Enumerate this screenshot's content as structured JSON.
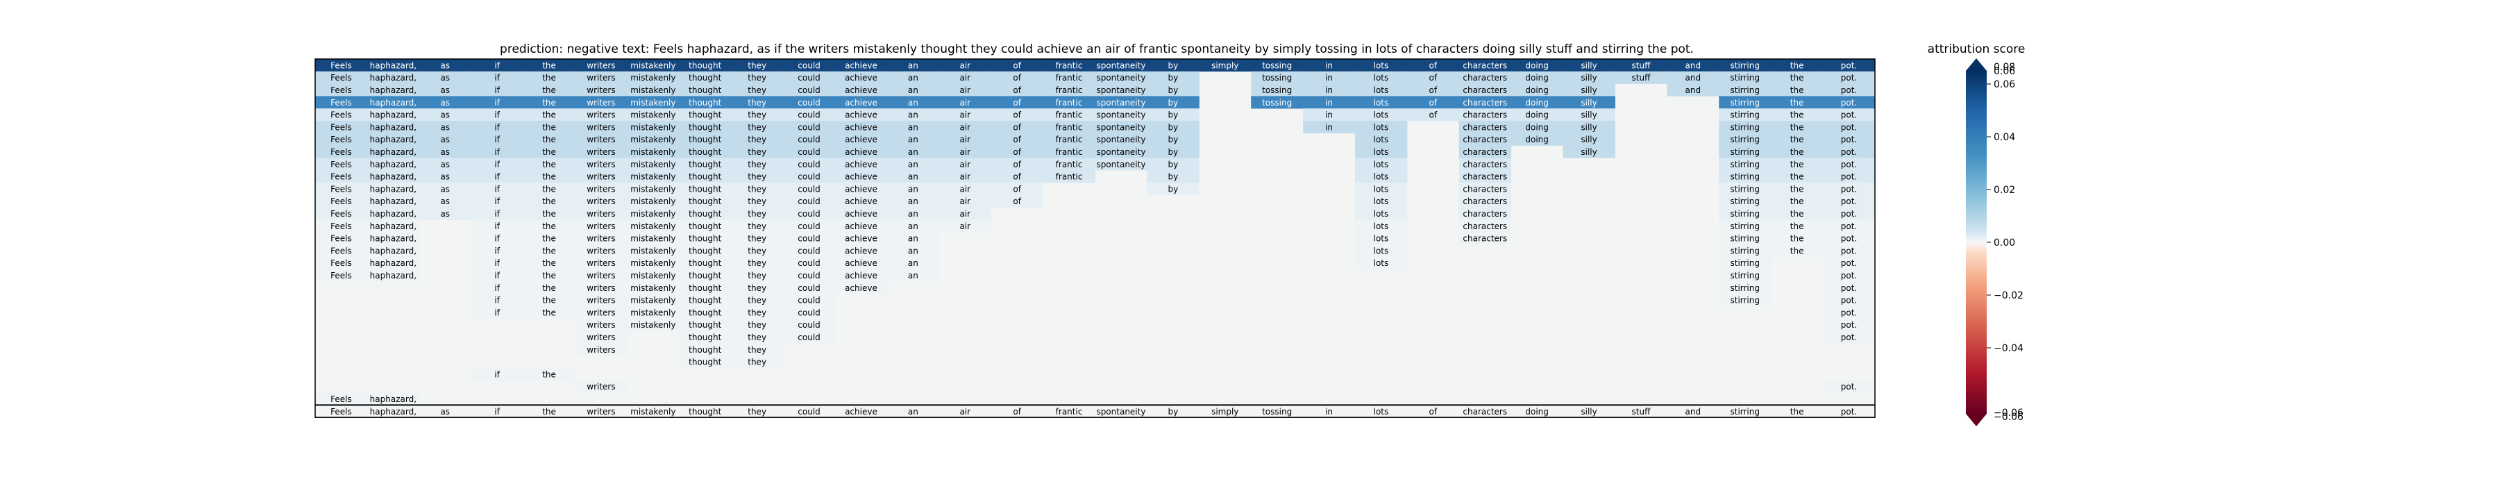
{
  "chart_data": {
    "type": "heatmap",
    "title": "prediction:  negative     text:  Feels haphazard, as if the writers mistakenly thought they could achieve an air of frantic spontaneity by simply tossing in lots of characters doing silly stuff and stirring the pot.",
    "tokens": [
      "Feels",
      "haphazard,",
      "as",
      "if",
      "the",
      "writers",
      "mistakenly",
      "thought",
      "they",
      "could",
      "achieve",
      "an",
      "air",
      "of",
      "frantic",
      "spontaneity",
      "by",
      "simply",
      "tossing",
      "in",
      "lots",
      "of",
      "characters",
      "doing",
      "silly",
      "stuff",
      "and",
      "stirring",
      "the",
      "pot."
    ],
    "rows": [
      {
        "shown": [
          1,
          1,
          1,
          1,
          1,
          1,
          1,
          1,
          1,
          1,
          1,
          1,
          1,
          1,
          1,
          1,
          1,
          1,
          1,
          1,
          1,
          1,
          1,
          1,
          1,
          1,
          1,
          1,
          1,
          1
        ],
        "level": "darkest"
      },
      {
        "shown": [
          1,
          1,
          1,
          1,
          1,
          1,
          1,
          1,
          1,
          1,
          1,
          1,
          1,
          1,
          1,
          1,
          1,
          0,
          1,
          1,
          1,
          1,
          1,
          1,
          1,
          1,
          1,
          1,
          1,
          1
        ],
        "level": "medium-light"
      },
      {
        "shown": [
          1,
          1,
          1,
          1,
          1,
          1,
          1,
          1,
          1,
          1,
          1,
          1,
          1,
          1,
          1,
          1,
          1,
          0,
          1,
          1,
          1,
          1,
          1,
          1,
          1,
          0,
          1,
          1,
          1,
          1
        ],
        "level": "medium-light"
      },
      {
        "shown": [
          1,
          1,
          1,
          1,
          1,
          1,
          1,
          1,
          1,
          1,
          1,
          1,
          1,
          1,
          1,
          1,
          1,
          0,
          1,
          1,
          1,
          1,
          1,
          1,
          1,
          0,
          0,
          1,
          1,
          1
        ],
        "level": "dark"
      },
      {
        "shown": [
          1,
          1,
          1,
          1,
          1,
          1,
          1,
          1,
          1,
          1,
          1,
          1,
          1,
          1,
          1,
          1,
          1,
          0,
          0,
          1,
          1,
          1,
          1,
          1,
          1,
          0,
          0,
          1,
          1,
          1
        ],
        "level": "light"
      },
      {
        "shown": [
          1,
          1,
          1,
          1,
          1,
          1,
          1,
          1,
          1,
          1,
          1,
          1,
          1,
          1,
          1,
          1,
          1,
          0,
          0,
          1,
          1,
          0,
          1,
          1,
          1,
          0,
          0,
          1,
          1,
          1
        ],
        "level": "medium-light"
      },
      {
        "shown": [
          1,
          1,
          1,
          1,
          1,
          1,
          1,
          1,
          1,
          1,
          1,
          1,
          1,
          1,
          1,
          1,
          1,
          0,
          0,
          0,
          1,
          0,
          1,
          1,
          1,
          0,
          0,
          1,
          1,
          1
        ],
        "level": "medium-light"
      },
      {
        "shown": [
          1,
          1,
          1,
          1,
          1,
          1,
          1,
          1,
          1,
          1,
          1,
          1,
          1,
          1,
          1,
          1,
          1,
          0,
          0,
          0,
          1,
          0,
          1,
          0,
          1,
          0,
          0,
          1,
          1,
          1
        ],
        "level": "medium-light"
      },
      {
        "shown": [
          1,
          1,
          1,
          1,
          1,
          1,
          1,
          1,
          1,
          1,
          1,
          1,
          1,
          1,
          1,
          1,
          1,
          0,
          0,
          0,
          1,
          0,
          1,
          0,
          0,
          0,
          0,
          1,
          1,
          1
        ],
        "level": "light"
      },
      {
        "shown": [
          1,
          1,
          1,
          1,
          1,
          1,
          1,
          1,
          1,
          1,
          1,
          1,
          1,
          1,
          1,
          0,
          1,
          0,
          0,
          0,
          1,
          0,
          1,
          0,
          0,
          0,
          0,
          1,
          1,
          1
        ],
        "level": "light"
      },
      {
        "shown": [
          1,
          1,
          1,
          1,
          1,
          1,
          1,
          1,
          1,
          1,
          1,
          1,
          1,
          1,
          0,
          0,
          1,
          0,
          0,
          0,
          1,
          0,
          1,
          0,
          0,
          0,
          0,
          1,
          1,
          1
        ],
        "level": "lightest"
      },
      {
        "shown": [
          1,
          1,
          1,
          1,
          1,
          1,
          1,
          1,
          1,
          1,
          1,
          1,
          1,
          1,
          0,
          0,
          0,
          0,
          0,
          0,
          1,
          0,
          1,
          0,
          0,
          0,
          0,
          1,
          1,
          1
        ],
        "level": "lightest"
      },
      {
        "shown": [
          1,
          1,
          1,
          1,
          1,
          1,
          1,
          1,
          1,
          1,
          1,
          1,
          1,
          0,
          0,
          0,
          0,
          0,
          0,
          0,
          1,
          0,
          1,
          0,
          0,
          0,
          0,
          1,
          1,
          1
        ],
        "level": "lightest"
      },
      {
        "shown": [
          1,
          1,
          0,
          1,
          1,
          1,
          1,
          1,
          1,
          1,
          1,
          1,
          1,
          0,
          0,
          0,
          0,
          0,
          0,
          0,
          1,
          0,
          1,
          0,
          0,
          0,
          0,
          1,
          1,
          1
        ],
        "level": "faint"
      },
      {
        "shown": [
          1,
          1,
          0,
          1,
          1,
          1,
          1,
          1,
          1,
          1,
          1,
          1,
          0,
          0,
          0,
          0,
          0,
          0,
          0,
          0,
          1,
          0,
          1,
          0,
          0,
          0,
          0,
          1,
          1,
          1
        ],
        "level": "faint"
      },
      {
        "shown": [
          1,
          1,
          0,
          1,
          1,
          1,
          1,
          1,
          1,
          1,
          1,
          1,
          0,
          0,
          0,
          0,
          0,
          0,
          0,
          0,
          1,
          0,
          0,
          0,
          0,
          0,
          0,
          1,
          1,
          1
        ],
        "level": "faint"
      },
      {
        "shown": [
          1,
          1,
          0,
          1,
          1,
          1,
          1,
          1,
          1,
          1,
          1,
          1,
          0,
          0,
          0,
          0,
          0,
          0,
          0,
          0,
          1,
          0,
          0,
          0,
          0,
          0,
          0,
          1,
          0,
          1
        ],
        "level": "faint"
      },
      {
        "shown": [
          1,
          1,
          0,
          1,
          1,
          1,
          1,
          1,
          1,
          1,
          1,
          1,
          0,
          0,
          0,
          0,
          0,
          0,
          0,
          0,
          0,
          0,
          0,
          0,
          0,
          0,
          0,
          1,
          0,
          1
        ],
        "level": "faint"
      },
      {
        "shown": [
          0,
          0,
          0,
          1,
          1,
          1,
          1,
          1,
          1,
          1,
          1,
          0,
          0,
          0,
          0,
          0,
          0,
          0,
          0,
          0,
          0,
          0,
          0,
          0,
          0,
          0,
          0,
          1,
          0,
          1
        ],
        "level": "faint"
      },
      {
        "shown": [
          0,
          0,
          0,
          1,
          1,
          1,
          1,
          1,
          1,
          1,
          0,
          0,
          0,
          0,
          0,
          0,
          0,
          0,
          0,
          0,
          0,
          0,
          0,
          0,
          0,
          0,
          0,
          1,
          0,
          1
        ],
        "level": "faint"
      },
      {
        "shown": [
          0,
          0,
          0,
          1,
          1,
          1,
          1,
          1,
          1,
          1,
          0,
          0,
          0,
          0,
          0,
          0,
          0,
          0,
          0,
          0,
          0,
          0,
          0,
          0,
          0,
          0,
          0,
          0,
          0,
          1
        ],
        "level": "faint"
      },
      {
        "shown": [
          0,
          0,
          0,
          0,
          0,
          1,
          1,
          1,
          1,
          1,
          0,
          0,
          0,
          0,
          0,
          0,
          0,
          0,
          0,
          0,
          0,
          0,
          0,
          0,
          0,
          0,
          0,
          0,
          0,
          1
        ],
        "level": "faint"
      },
      {
        "shown": [
          0,
          0,
          0,
          0,
          0,
          1,
          0,
          1,
          1,
          1,
          0,
          0,
          0,
          0,
          0,
          0,
          0,
          0,
          0,
          0,
          0,
          0,
          0,
          0,
          0,
          0,
          0,
          0,
          0,
          1
        ],
        "level": "faint"
      },
      {
        "shown": [
          0,
          0,
          0,
          0,
          0,
          1,
          0,
          1,
          1,
          0,
          0,
          0,
          0,
          0,
          0,
          0,
          0,
          0,
          0,
          0,
          0,
          0,
          0,
          0,
          0,
          0,
          0,
          0,
          0,
          0
        ],
        "level": "faint"
      },
      {
        "shown": [
          0,
          0,
          0,
          0,
          0,
          0,
          0,
          1,
          1,
          0,
          0,
          0,
          0,
          0,
          0,
          0,
          0,
          0,
          0,
          0,
          0,
          0,
          0,
          0,
          0,
          0,
          0,
          0,
          0,
          0
        ],
        "level": "faint"
      },
      {
        "shown": [
          0,
          0,
          0,
          1,
          1,
          0,
          0,
          0,
          0,
          0,
          0,
          0,
          0,
          0,
          0,
          0,
          0,
          0,
          0,
          0,
          0,
          0,
          0,
          0,
          0,
          0,
          0,
          0,
          0,
          0
        ],
        "level": "faint"
      },
      {
        "shown": [
          0,
          0,
          0,
          0,
          0,
          1,
          0,
          0,
          0,
          0,
          0,
          0,
          0,
          0,
          0,
          0,
          0,
          0,
          0,
          0,
          0,
          0,
          0,
          0,
          0,
          0,
          0,
          0,
          0,
          1
        ],
        "level": "faint"
      },
      {
        "shown": [
          1,
          1,
          0,
          0,
          0,
          0,
          0,
          0,
          0,
          0,
          0,
          0,
          0,
          0,
          0,
          0,
          0,
          0,
          0,
          0,
          0,
          0,
          0,
          0,
          0,
          0,
          0,
          0,
          0,
          0
        ],
        "level": "faint"
      }
    ],
    "colorbar": {
      "label": "attribution score",
      "ticks": [
        "0.06",
        "0.04",
        "0.02",
        "0.00",
        "−0.02",
        "−0.04"
      ],
      "tick_values": [
        0.06,
        0.04,
        0.02,
        0.0,
        -0.02,
        -0.04
      ],
      "top_overlap_labels": [
        "0.08",
        "0.06"
      ],
      "bottom_overlap_labels": [
        "−0.06",
        "−0.06"
      ],
      "range": [
        -0.065,
        0.065
      ]
    },
    "colors": {
      "darkest": "#15477f",
      "dark": "#3c85be",
      "medium-light": "#c2dcec",
      "light": "#d8e8f2",
      "lightest": "#e6eff4",
      "faint": "#eef3f5",
      "empty": "#f3f5f5",
      "border": "#000000"
    }
  }
}
